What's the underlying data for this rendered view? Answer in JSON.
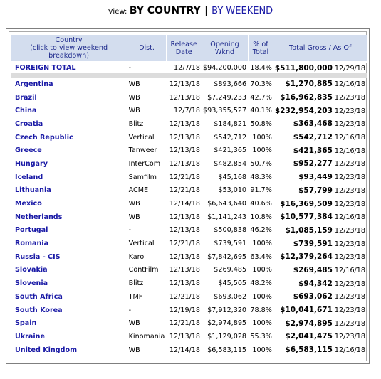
{
  "view": {
    "label": "View:",
    "current": "BY COUNTRY",
    "separator": "|",
    "alt_link": "BY WEEKEND"
  },
  "table": {
    "headers": {
      "country_line1": "Country",
      "country_line2": "(click to view weekend breakdown)",
      "dist": "Dist.",
      "release_line1": "Release",
      "release_line2": "Date",
      "opening_line1": "Opening",
      "opening_line2": "Wknd",
      "pct_line1": "% of",
      "pct_line2": "Total",
      "total": "Total Gross / As Of"
    },
    "foreign_total": {
      "country": "FOREIGN TOTAL",
      "dist": "-",
      "release": "12/7/18",
      "opening": "$94,200,000",
      "pct": "18.4%",
      "gross": "$511,800,000",
      "asof": "12/29/18"
    },
    "rows": [
      {
        "country": "Argentina",
        "dist": "WB",
        "release": "12/13/18",
        "opening": "$893,666",
        "pct": "70.3%",
        "gross": "$1,270,885",
        "asof": "12/16/18"
      },
      {
        "country": "Brazil",
        "dist": "WB",
        "release": "12/13/18",
        "opening": "$7,249,233",
        "pct": "42.7%",
        "gross": "$16,962,835",
        "asof": "12/23/18"
      },
      {
        "country": "China",
        "dist": "WB",
        "release": "12/7/18",
        "opening": "$93,355,527",
        "pct": "40.1%",
        "gross": "$232,954,203",
        "asof": "12/23/18"
      },
      {
        "country": "Croatia",
        "dist": "Blitz",
        "release": "12/13/18",
        "opening": "$184,821",
        "pct": "50.8%",
        "gross": "$363,468",
        "asof": "12/23/18"
      },
      {
        "country": "Czech Republic",
        "dist": "Vertical",
        "release": "12/13/18",
        "opening": "$542,712",
        "pct": "100%",
        "gross": "$542,712",
        "asof": "12/16/18"
      },
      {
        "country": "Greece",
        "dist": "Tanweer",
        "release": "12/13/18",
        "opening": "$421,365",
        "pct": "100%",
        "gross": "$421,365",
        "asof": "12/16/18"
      },
      {
        "country": "Hungary",
        "dist": "InterCom",
        "release": "12/13/18",
        "opening": "$482,854",
        "pct": "50.7%",
        "gross": "$952,277",
        "asof": "12/23/18"
      },
      {
        "country": "Iceland",
        "dist": "Samfilm",
        "release": "12/21/18",
        "opening": "$45,168",
        "pct": "48.3%",
        "gross": "$93,449",
        "asof": "12/23/18"
      },
      {
        "country": "Lithuania",
        "dist": "ACME",
        "release": "12/21/18",
        "opening": "$53,010",
        "pct": "91.7%",
        "gross": "$57,799",
        "asof": "12/23/18"
      },
      {
        "country": "Mexico",
        "dist": "WB",
        "release": "12/14/18",
        "opening": "$6,643,640",
        "pct": "40.6%",
        "gross": "$16,369,509",
        "asof": "12/23/18"
      },
      {
        "country": "Netherlands",
        "dist": "WB",
        "release": "12/13/18",
        "opening": "$1,141,243",
        "pct": "10.8%",
        "gross": "$10,577,384",
        "asof": "12/16/18"
      },
      {
        "country": "Portugal",
        "dist": "-",
        "release": "12/13/18",
        "opening": "$500,838",
        "pct": "46.2%",
        "gross": "$1,085,159",
        "asof": "12/23/18"
      },
      {
        "country": "Romania",
        "dist": "Vertical",
        "release": "12/21/18",
        "opening": "$739,591",
        "pct": "100%",
        "gross": "$739,591",
        "asof": "12/23/18"
      },
      {
        "country": "Russia - CIS",
        "dist": "Karo",
        "release": "12/13/18",
        "opening": "$7,842,695",
        "pct": "63.4%",
        "gross": "$12,379,264",
        "asof": "12/23/18"
      },
      {
        "country": "Slovakia",
        "dist": "ContFilm",
        "release": "12/13/18",
        "opening": "$269,485",
        "pct": "100%",
        "gross": "$269,485",
        "asof": "12/16/18"
      },
      {
        "country": "Slovenia",
        "dist": "Blitz",
        "release": "12/13/18",
        "opening": "$45,505",
        "pct": "48.2%",
        "gross": "$94,342",
        "asof": "12/23/18"
      },
      {
        "country": "South Africa",
        "dist": "TMF",
        "release": "12/21/18",
        "opening": "$693,062",
        "pct": "100%",
        "gross": "$693,062",
        "asof": "12/23/18"
      },
      {
        "country": "South Korea",
        "dist": "-",
        "release": "12/19/18",
        "opening": "$7,912,320",
        "pct": "78.8%",
        "gross": "$10,041,671",
        "asof": "12/23/18"
      },
      {
        "country": "Spain",
        "dist": "WB",
        "release": "12/21/18",
        "opening": "$2,974,895",
        "pct": "100%",
        "gross": "$2,974,895",
        "asof": "12/23/18"
      },
      {
        "country": "Ukraine",
        "dist": "Kinomania",
        "release": "12/13/18",
        "opening": "$1,129,028",
        "pct": "55.3%",
        "gross": "$2,041,475",
        "asof": "12/23/18"
      },
      {
        "country": "United Kingdom",
        "dist": "WB",
        "release": "12/14/18",
        "opening": "$6,583,115",
        "pct": "100%",
        "gross": "$6,583,115",
        "asof": "12/16/18"
      }
    ]
  }
}
